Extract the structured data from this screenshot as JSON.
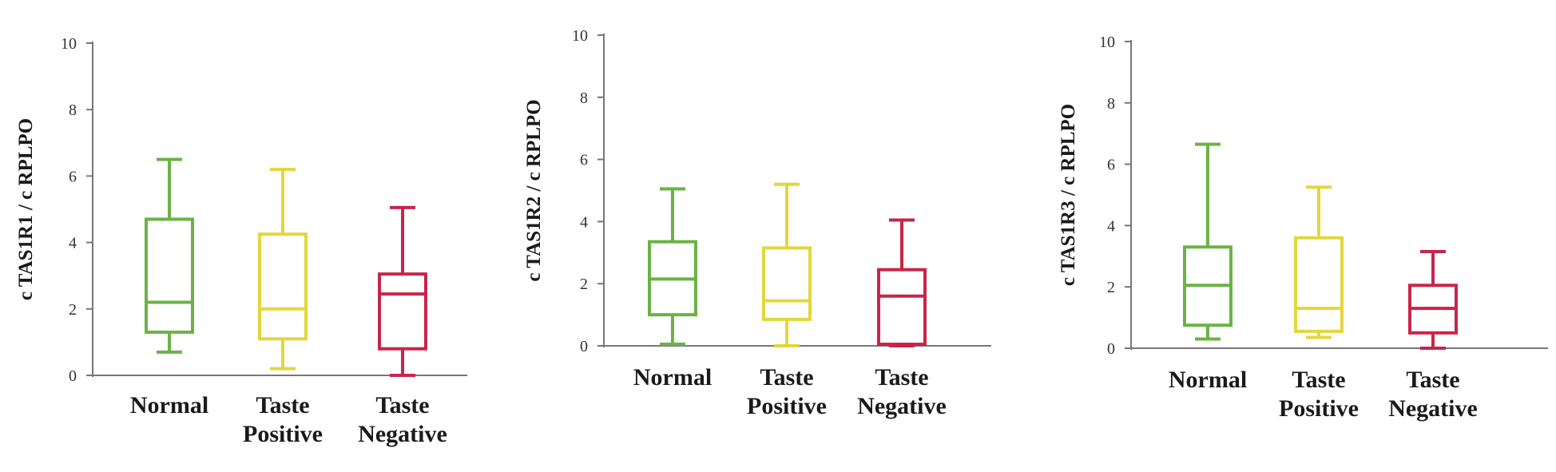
{
  "chart_data": [
    {
      "type": "box",
      "ylabel": "c TAS1R1 / c RPLPO",
      "ylim": [
        0,
        10
      ],
      "yticks": [
        "0",
        "2",
        "4",
        "6",
        "8",
        "10"
      ],
      "categories": [
        [
          "Normal"
        ],
        [
          "Taste",
          "Positive"
        ],
        [
          "Taste",
          "Negative"
        ]
      ],
      "colors": [
        "#6ab344",
        "#e3d63c",
        "#c8254a"
      ],
      "boxes": [
        {
          "min": 0.7,
          "q1": 1.3,
          "median": 2.2,
          "q3": 4.7,
          "max": 6.5
        },
        {
          "min": 0.2,
          "q1": 1.1,
          "median": 2.0,
          "q3": 4.25,
          "max": 6.2
        },
        {
          "min": 0.0,
          "q1": 0.8,
          "median": 2.45,
          "q3": 3.05,
          "max": 5.05
        }
      ]
    },
    {
      "type": "box",
      "ylabel": "c TAS1R2 / c RPLPO",
      "ylim": [
        0,
        10
      ],
      "yticks": [
        "0",
        "2",
        "4",
        "6",
        "8",
        "10"
      ],
      "categories": [
        [
          "Normal"
        ],
        [
          "Taste",
          "Positive"
        ],
        [
          "Taste",
          "Negative"
        ]
      ],
      "colors": [
        "#6ab344",
        "#e3d63c",
        "#c8254a"
      ],
      "boxes": [
        {
          "min": 0.05,
          "q1": 1.0,
          "median": 2.15,
          "q3": 3.35,
          "max": 5.05
        },
        {
          "min": 0.0,
          "q1": 0.85,
          "median": 1.45,
          "q3": 3.15,
          "max": 5.2
        },
        {
          "min": 0.0,
          "q1": 0.05,
          "median": 1.6,
          "q3": 2.45,
          "max": 4.05
        }
      ]
    },
    {
      "type": "box",
      "ylabel": "c TAS1R3 / c RPLPO",
      "ylim": [
        0,
        10
      ],
      "yticks": [
        "0",
        "2",
        "4",
        "6",
        "8",
        "10"
      ],
      "categories": [
        [
          "Normal"
        ],
        [
          "Taste",
          "Positive"
        ],
        [
          "Taste",
          "Negative"
        ]
      ],
      "colors": [
        "#6ab344",
        "#e3d63c",
        "#c8254a"
      ],
      "boxes": [
        {
          "min": 0.3,
          "q1": 0.75,
          "median": 2.05,
          "q3": 3.3,
          "max": 6.65
        },
        {
          "min": 0.35,
          "q1": 0.55,
          "median": 1.3,
          "q3": 3.6,
          "max": 5.25
        },
        {
          "min": 0.0,
          "q1": 0.5,
          "median": 1.3,
          "q3": 2.05,
          "max": 3.15
        }
      ]
    }
  ]
}
